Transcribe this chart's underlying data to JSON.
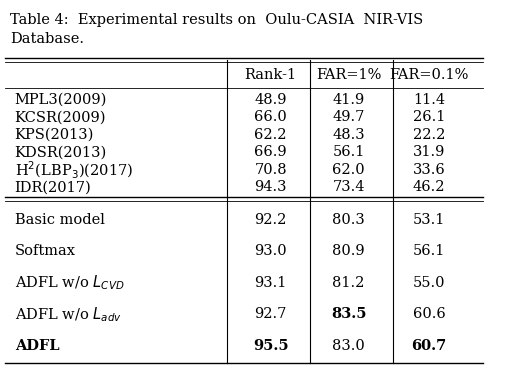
{
  "title": "Table 4:  Experimental results on  Oulu-CASIA  NIR-VIS\nDatabase.",
  "columns": [
    "",
    "Rank-1",
    "FAR=1%",
    "FAR=0.1%"
  ],
  "group1": [
    [
      "MPL3(2009)",
      "48.9",
      "41.9",
      "11.4"
    ],
    [
      "KCSR(2009)",
      "66.0",
      "49.7",
      "26.1"
    ],
    [
      "KPS(2013)",
      "62.2",
      "48.3",
      "22.2"
    ],
    [
      "KDSR(2013)",
      "66.9",
      "56.1",
      "31.9"
    ],
    [
      "H$^2$(LBP$_3$)(2017)",
      "70.8",
      "62.0",
      "33.6"
    ],
    [
      "IDR(2017)",
      "94.3",
      "73.4",
      "46.2"
    ]
  ],
  "group2": [
    [
      "Basic model",
      "92.2",
      "80.3",
      "53.1"
    ],
    [
      "Softmax",
      "93.0",
      "80.9",
      "56.1"
    ],
    [
      "ADFL w/o $L_{CVD}$",
      "93.1",
      "81.2",
      "55.0"
    ],
    [
      "ADFL w/o $L_{adv}$",
      "92.7",
      "83.5",
      "60.6"
    ],
    [
      "ADFL",
      "95.5",
      "83.0",
      "60.7"
    ]
  ],
  "bold_cells": {
    "group2_row3_col1": true,
    "group2_row4_col0": true,
    "group2_row4_col2": true
  },
  "bg_color": "#ffffff",
  "text_color": "#000000",
  "font_size": 10.5,
  "title_font_size": 10.5
}
